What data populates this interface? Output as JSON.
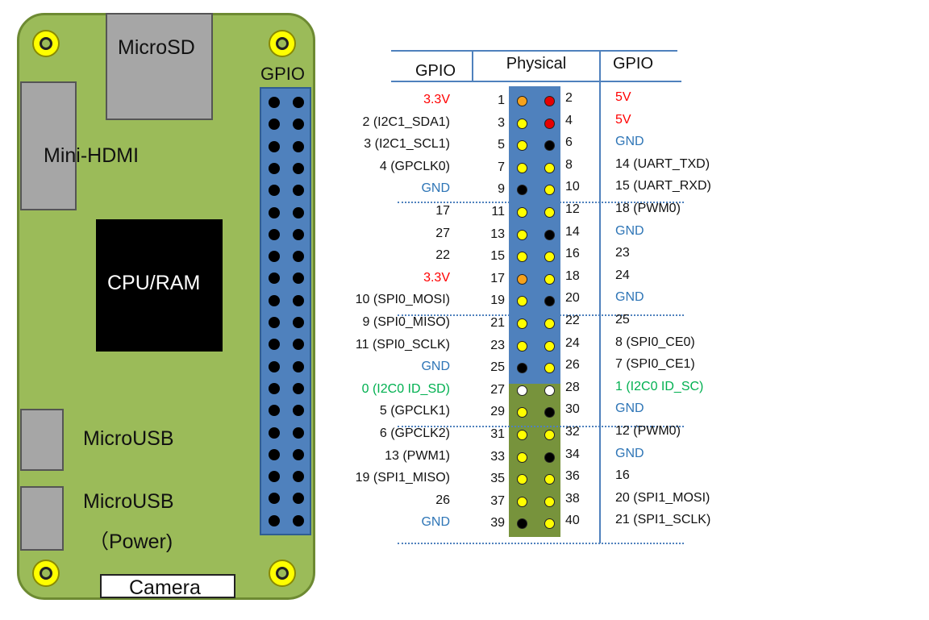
{
  "board": {
    "microsd": "MicroSD",
    "gpio": "GPIO",
    "mini_hdmi": "Mini-HDMI",
    "cpu_ram": "CPU/RAM",
    "microusb": "MicroUSB",
    "microusb_power_1": "MicroUSB",
    "microusb_power_2": "（Power)",
    "camera": "Camera"
  },
  "table": {
    "header_left": "GPIO",
    "header_mid": "Physical",
    "header_right": "GPIO",
    "colors": {
      "power33": "#ff0000",
      "power5": "#ff0000",
      "gnd": "#2e75b6",
      "eeprom": "#00b050",
      "normal": "#111111",
      "pin_orange": "#f7a21b",
      "pin_red": "#e60000",
      "pin_yellow": "#ffff00",
      "pin_black": "#000000",
      "pin_white": "#ffffff"
    },
    "rows": [
      {
        "left": "3.3V",
        "lt": "power33",
        "l": 1,
        "r": 2,
        "lc": "orange",
        "rc": "red",
        "right": "5V",
        "rt": "power5"
      },
      {
        "left": "2 (I2C1_SDA1)",
        "lt": "normal",
        "l": 3,
        "r": 4,
        "lc": "yellow",
        "rc": "red",
        "right": "5V",
        "rt": "power5"
      },
      {
        "left": "3 (I2C1_SCL1)",
        "lt": "normal",
        "l": 5,
        "r": 6,
        "lc": "yellow",
        "rc": "black",
        "right": "GND",
        "rt": "gnd"
      },
      {
        "left": "4 (GPCLK0)",
        "lt": "normal",
        "l": 7,
        "r": 8,
        "lc": "yellow",
        "rc": "yellow",
        "right": "14 (UART_TXD)",
        "rt": "normal"
      },
      {
        "left": "GND",
        "lt": "gnd",
        "l": 9,
        "r": 10,
        "lc": "black",
        "rc": "yellow",
        "right": "15 (UART_RXD)",
        "rt": "normal"
      },
      {
        "left": "17",
        "lt": "normal",
        "l": 11,
        "r": 12,
        "lc": "yellow",
        "rc": "yellow",
        "right": "18 (PWM0)",
        "rt": "normal"
      },
      {
        "left": "27",
        "lt": "normal",
        "l": 13,
        "r": 14,
        "lc": "yellow",
        "rc": "black",
        "right": "GND",
        "rt": "gnd"
      },
      {
        "left": "22",
        "lt": "normal",
        "l": 15,
        "r": 16,
        "lc": "yellow",
        "rc": "yellow",
        "right": "23",
        "rt": "normal"
      },
      {
        "left": "3.3V",
        "lt": "power33",
        "l": 17,
        "r": 18,
        "lc": "orange",
        "rc": "yellow",
        "right": "24",
        "rt": "normal"
      },
      {
        "left": "10 (SPI0_MOSI)",
        "lt": "normal",
        "l": 19,
        "r": 20,
        "lc": "yellow",
        "rc": "black",
        "right": "GND",
        "rt": "gnd"
      },
      {
        "left": "9 (SPI0_MISO)",
        "lt": "normal",
        "l": 21,
        "r": 22,
        "lc": "yellow",
        "rc": "yellow",
        "right": "25",
        "rt": "normal"
      },
      {
        "left": "11 (SPI0_SCLK)",
        "lt": "normal",
        "l": 23,
        "r": 24,
        "lc": "yellow",
        "rc": "yellow",
        "right": "8 (SPI0_CE0)",
        "rt": "normal"
      },
      {
        "left": "GND",
        "lt": "gnd",
        "l": 25,
        "r": 26,
        "lc": "black",
        "rc": "yellow",
        "right": "7 (SPI0_CE1)",
        "rt": "normal"
      },
      {
        "left": "0 (I2C0  ID_SD)",
        "lt": "eeprom",
        "l": 27,
        "r": 28,
        "lc": "white",
        "rc": "white",
        "right": "1 (I2C0  ID_SC)",
        "rt": "eeprom"
      },
      {
        "left": "5 (GPCLK1)",
        "lt": "normal",
        "l": 29,
        "r": 30,
        "lc": "yellow",
        "rc": "black",
        "right": "GND",
        "rt": "gnd"
      },
      {
        "left": "6 (GPCLK2)",
        "lt": "normal",
        "l": 31,
        "r": 32,
        "lc": "yellow",
        "rc": "yellow",
        "right": "12 (PWM0)",
        "rt": "normal"
      },
      {
        "left": "13 (PWM1)",
        "lt": "normal",
        "l": 33,
        "r": 34,
        "lc": "yellow",
        "rc": "black",
        "right": "GND",
        "rt": "gnd"
      },
      {
        "left": "19 (SPI1_MISO)",
        "lt": "normal",
        "l": 35,
        "r": 36,
        "lc": "yellow",
        "rc": "yellow",
        "right": "16",
        "rt": "normal"
      },
      {
        "left": "26",
        "lt": "normal",
        "l": 37,
        "r": 38,
        "lc": "yellow",
        "rc": "yellow",
        "right": "20 (SPI1_MOSI)",
        "rt": "normal"
      },
      {
        "left": "GND",
        "lt": "gnd",
        "l": 39,
        "r": 40,
        "lc": "black",
        "rc": "yellow",
        "right": "21 (SPI1_SCLK)",
        "rt": "normal"
      }
    ]
  }
}
